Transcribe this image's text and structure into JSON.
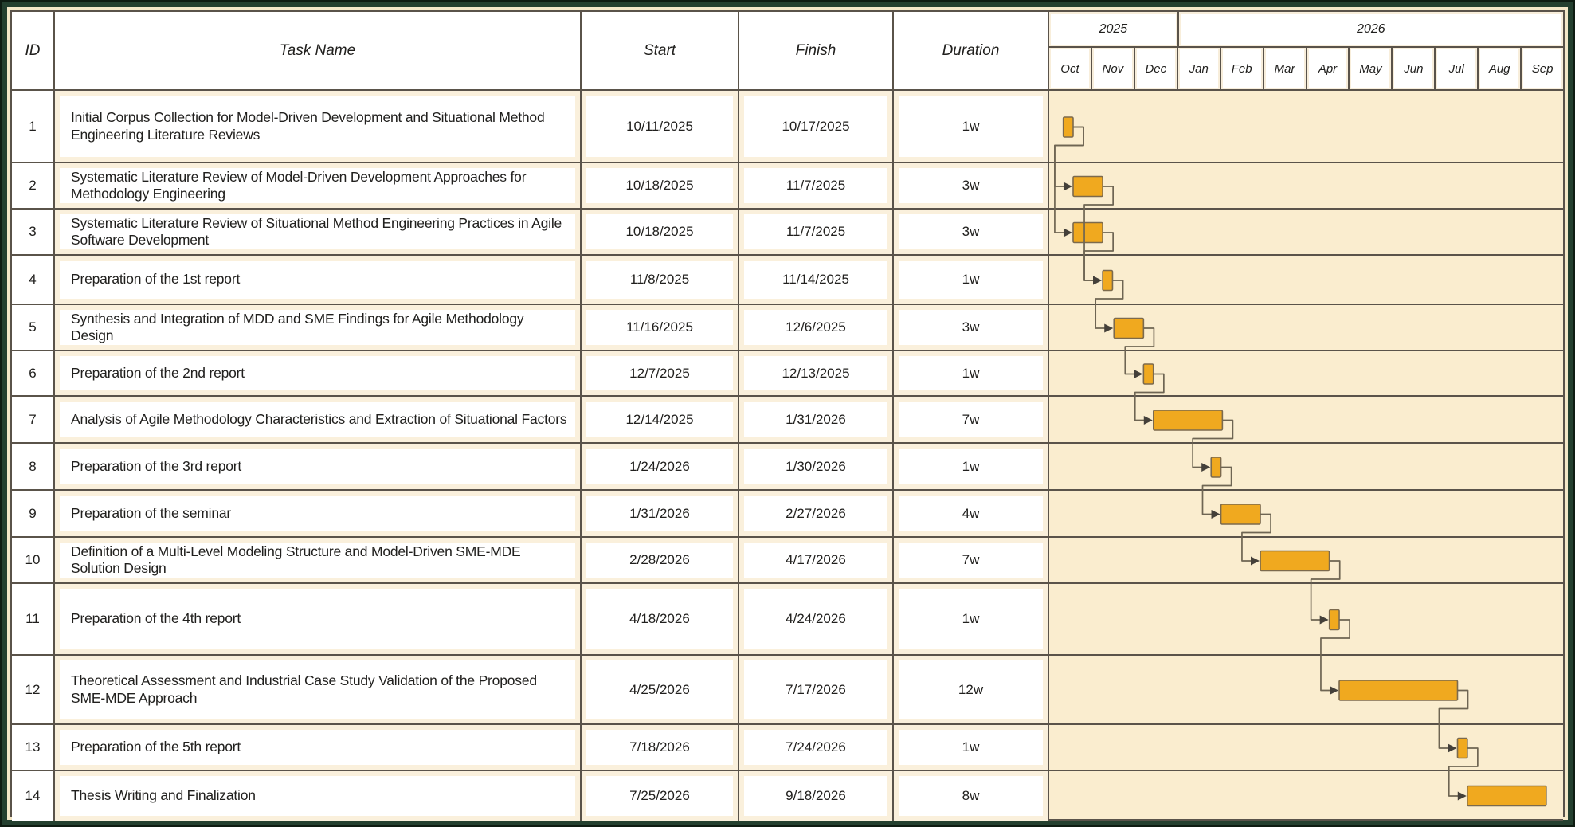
{
  "table": {
    "columns": {
      "id": "ID",
      "task": "Task Name",
      "start": "Start",
      "finish": "Finish",
      "duration": "Duration"
    },
    "rows": [
      {
        "id": "1",
        "task": "Initial Corpus Collection for Model-Driven Development and Situational Method Engineering Literature Reviews",
        "start": "10/11/2025",
        "finish": "10/17/2025",
        "duration": "1w"
      },
      {
        "id": "2",
        "task": "Systematic Literature Review of Model-Driven Development Approaches for Methodology Engineering",
        "start": "10/18/2025",
        "finish": "11/7/2025",
        "duration": "3w"
      },
      {
        "id": "3",
        "task": "Systematic Literature Review of Situational Method Engineering Practices in Agile Software Development",
        "start": "10/18/2025",
        "finish": "11/7/2025",
        "duration": "3w"
      },
      {
        "id": "4",
        "task": "Preparation of the 1st report",
        "start": "11/8/2025",
        "finish": "11/14/2025",
        "duration": "1w"
      },
      {
        "id": "5",
        "task": "Synthesis and Integration of MDD and SME Findings for Agile Methodology Design",
        "start": "11/16/2025",
        "finish": "12/6/2025",
        "duration": "3w"
      },
      {
        "id": "6",
        "task": "Preparation of the 2nd report",
        "start": "12/7/2025",
        "finish": "12/13/2025",
        "duration": "1w"
      },
      {
        "id": "7",
        "task": "Analysis of Agile Methodology Characteristics and Extraction of Situational Factors",
        "start": "12/14/2025",
        "finish": "1/31/2026",
        "duration": "7w"
      },
      {
        "id": "8",
        "task": "Preparation of the 3rd report",
        "start": "1/24/2026",
        "finish": "1/30/2026",
        "duration": "1w"
      },
      {
        "id": "9",
        "task": "Preparation of the seminar",
        "start": "1/31/2026",
        "finish": "2/27/2026",
        "duration": "4w"
      },
      {
        "id": "10",
        "task": "Definition of a Multi-Level Modeling Structure and Model-Driven SME-MDE Solution Design",
        "start": "2/28/2026",
        "finish": "4/17/2026",
        "duration": "7w"
      },
      {
        "id": "11",
        "task": "Preparation of the 4th report",
        "start": "4/18/2026",
        "finish": "4/24/2026",
        "duration": "1w"
      },
      {
        "id": "12",
        "task": "Theoretical Assessment and Industrial Case Study Validation of the Proposed SME-MDE Approach",
        "start": "4/25/2026",
        "finish": "7/17/2026",
        "duration": "12w"
      },
      {
        "id": "13",
        "task": "Preparation of the 5th report",
        "start": "7/18/2026",
        "finish": "7/24/2026",
        "duration": "1w"
      },
      {
        "id": "14",
        "task": "Thesis Writing and Finalization",
        "start": "7/25/2026",
        "finish": "9/18/2026",
        "duration": "8w"
      }
    ]
  },
  "timeline": {
    "years": [
      {
        "label": "2025",
        "months": [
          "Oct",
          "Nov",
          "Dec"
        ]
      },
      {
        "label": "2026",
        "months": [
          "Jan",
          "Feb",
          "Mar",
          "Apr",
          "May",
          "Jun",
          "Jul",
          "Aug",
          "Sep"
        ]
      }
    ]
  },
  "chart_data": {
    "type": "gantt",
    "title": "",
    "timeline_start": "10/1/2025",
    "timeline_end": "9/30/2026",
    "tasks": [
      {
        "id": 1,
        "name": "Initial Corpus Collection for Model-Driven Development and Situational Method Engineering Literature Reviews",
        "start": "10/11/2025",
        "finish": "10/17/2025",
        "duration_weeks": 1
      },
      {
        "id": 2,
        "name": "Systematic Literature Review of Model-Driven Development Approaches for Methodology Engineering",
        "start": "10/18/2025",
        "finish": "11/7/2025",
        "duration_weeks": 3
      },
      {
        "id": 3,
        "name": "Systematic Literature Review of Situational Method Engineering Practices in Agile Software Development",
        "start": "10/18/2025",
        "finish": "11/7/2025",
        "duration_weeks": 3
      },
      {
        "id": 4,
        "name": "Preparation of the 1st report",
        "start": "11/8/2025",
        "finish": "11/14/2025",
        "duration_weeks": 1
      },
      {
        "id": 5,
        "name": "Synthesis and Integration of MDD and SME Findings for Agile Methodology Design",
        "start": "11/16/2025",
        "finish": "12/6/2025",
        "duration_weeks": 3
      },
      {
        "id": 6,
        "name": "Preparation of the 2nd report",
        "start": "12/7/2025",
        "finish": "12/13/2025",
        "duration_weeks": 1
      },
      {
        "id": 7,
        "name": "Analysis of Agile Methodology Characteristics and Extraction of Situational Factors",
        "start": "12/14/2025",
        "finish": "1/31/2026",
        "duration_weeks": 7
      },
      {
        "id": 8,
        "name": "Preparation of the 3rd report",
        "start": "1/24/2026",
        "finish": "1/30/2026",
        "duration_weeks": 1
      },
      {
        "id": 9,
        "name": "Preparation of the seminar",
        "start": "1/31/2026",
        "finish": "2/27/2026",
        "duration_weeks": 4
      },
      {
        "id": 10,
        "name": "Definition of a Multi-Level Modeling Structure and Model-Driven SME-MDE Solution Design",
        "start": "2/28/2026",
        "finish": "4/17/2026",
        "duration_weeks": 7
      },
      {
        "id": 11,
        "name": "Preparation of the 4th report",
        "start": "4/18/2026",
        "finish": "4/24/2026",
        "duration_weeks": 1
      },
      {
        "id": 12,
        "name": "Theoretical Assessment and Industrial Case Study Validation of the Proposed SME-MDE Approach",
        "start": "4/25/2026",
        "finish": "7/17/2026",
        "duration_weeks": 12
      },
      {
        "id": 13,
        "name": "Preparation of the 5th report",
        "start": "7/18/2026",
        "finish": "7/24/2026",
        "duration_weeks": 1
      },
      {
        "id": 14,
        "name": "Thesis Writing and Finalization",
        "start": "7/25/2026",
        "finish": "9/18/2026",
        "duration_weeks": 8
      }
    ],
    "dependencies": [
      [
        1,
        2
      ],
      [
        1,
        3
      ],
      [
        2,
        4
      ],
      [
        3,
        4
      ],
      [
        4,
        5
      ],
      [
        5,
        6
      ],
      [
        6,
        7
      ],
      [
        7,
        8
      ],
      [
        8,
        9
      ],
      [
        9,
        10
      ],
      [
        10,
        11
      ],
      [
        11,
        12
      ],
      [
        12,
        13
      ],
      [
        13,
        14
      ]
    ],
    "legend_position": "none",
    "grid": "horizontal-row-lines-only"
  },
  "colors": {
    "frame_green": "#24402f",
    "cream_frame": "#f4e8c8",
    "cell_ring": "#faf0dc",
    "gantt_background": "#faedcf",
    "grid_line": "#5a534a",
    "bar_fill": "#f0a91f",
    "bar_border": "#7c6a4d",
    "connector_line": "#6e6553",
    "arrow_fill": "#44403a",
    "text": "#21201e"
  }
}
